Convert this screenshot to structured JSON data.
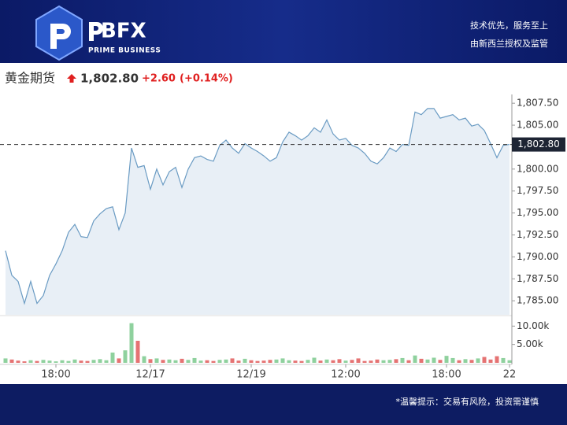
{
  "header": {
    "brand": "BFX",
    "tagline": "PRIME BUSINESS",
    "slogan": "技术优先，服务至上",
    "regulation": "由新西兰授权及监管"
  },
  "quote": {
    "symbol": "黄金期货",
    "change": "+2.60",
    "change_pct": "(+0.14%)"
  },
  "chart_data": {
    "type": "line",
    "categories": [
      null,
      null,
      null,
      null,
      null,
      null,
      null,
      null,
      "18:00",
      null,
      null,
      null,
      null,
      null,
      null,
      null,
      null,
      null,
      null,
      null,
      null,
      null,
      null,
      "12/17",
      null,
      null,
      null,
      null,
      null,
      null,
      null,
      null,
      null,
      null,
      null,
      null,
      null,
      null,
      null,
      "12/19",
      null,
      null,
      null,
      null,
      null,
      null,
      null,
      null,
      null,
      null,
      null,
      null,
      null,
      null,
      "12:00",
      null,
      null,
      null,
      null,
      null,
      null,
      null,
      null,
      null,
      null,
      null,
      null,
      null,
      null,
      null,
      "18:00",
      null,
      null,
      null,
      null,
      null,
      null,
      null,
      null,
      null,
      "22"
    ],
    "values": [
      1790.7,
      1787.9,
      1787.2,
      1784.7,
      1787.2,
      1784.7,
      1785.6,
      1787.9,
      1789.2,
      1790.7,
      1792.8,
      1793.7,
      1792.3,
      1792.2,
      1794.1,
      1794.9,
      1795.5,
      1795.7,
      1793.1,
      1795.0,
      1802.4,
      1800.2,
      1800.4,
      1797.7,
      1800.0,
      1798.2,
      1799.7,
      1800.2,
      1797.9,
      1800.0,
      1801.3,
      1801.5,
      1801.1,
      1800.9,
      1802.7,
      1803.3,
      1802.4,
      1801.8,
      1802.9,
      1802.4,
      1802.0,
      1801.5,
      1800.9,
      1801.3,
      1803.1,
      1804.2,
      1803.8,
      1803.3,
      1803.8,
      1804.7,
      1804.2,
      1805.6,
      1804.0,
      1803.3,
      1803.5,
      1802.7,
      1802.4,
      1801.8,
      1800.9,
      1800.6,
      1801.3,
      1802.4,
      1802.0,
      1802.8,
      1802.7,
      1806.5,
      1806.2,
      1806.9,
      1806.9,
      1805.8,
      1806.0,
      1806.2,
      1805.6,
      1805.8,
      1804.9,
      1805.1,
      1804.4,
      1802.9,
      1801.3,
      1802.7,
      1802.8
    ],
    "color": "#6a9bc3",
    "fill": "#e8eff6",
    "ylim": [
      1783.4,
      1808.5
    ],
    "yticks": [
      {
        "value": 1785,
        "label": "1,785.00"
      },
      {
        "value": 1787.5,
        "label": "1,787.50"
      },
      {
        "value": 1790,
        "label": "1,790.00"
      },
      {
        "value": 1792.5,
        "label": "1,792.50"
      },
      {
        "value": 1795,
        "label": "1,795.00"
      },
      {
        "value": 1797.5,
        "label": "1,797.50"
      },
      {
        "value": 1800,
        "label": "1,800.00"
      },
      {
        "value": 1802.5,
        "label": "1,802.50"
      },
      {
        "value": 1805,
        "label": "1,805.00"
      },
      {
        "value": 1807.5,
        "label": "1,807.50"
      }
    ],
    "last_price": {
      "value": 1802.8,
      "label": "1,802.80"
    },
    "volume": {
      "values": [
        1200,
        900,
        600,
        400,
        700,
        500,
        800,
        600,
        400,
        700,
        500,
        900,
        600,
        500,
        800,
        1000,
        700,
        2800,
        1200,
        3400,
        10800,
        6000,
        1800,
        1000,
        1200,
        800,
        900,
        700,
        1100,
        800,
        1300,
        600,
        700,
        500,
        800,
        900,
        1200,
        600,
        1100,
        700,
        500,
        600,
        800,
        900,
        1200,
        700,
        600,
        500,
        800,
        1400,
        600,
        900,
        700,
        1000,
        600,
        800,
        1200,
        500,
        600,
        900,
        700,
        800,
        1000,
        1300,
        700,
        2000,
        1100,
        900,
        1400,
        800,
        1900,
        1300,
        700,
        1000,
        800,
        1200,
        1600,
        900,
        1800,
        1300,
        700
      ],
      "ylim": [
        0,
        12000
      ],
      "yticks": [
        {
          "value": 5000,
          "label": "5.00k"
        },
        {
          "value": 10000,
          "label": "10.00k"
        }
      ],
      "up_color": "#8fd19e",
      "down_color": "#e57373"
    }
  },
  "footer": {
    "notice": "*温馨提示：交易有风险，投资需谨慎"
  }
}
